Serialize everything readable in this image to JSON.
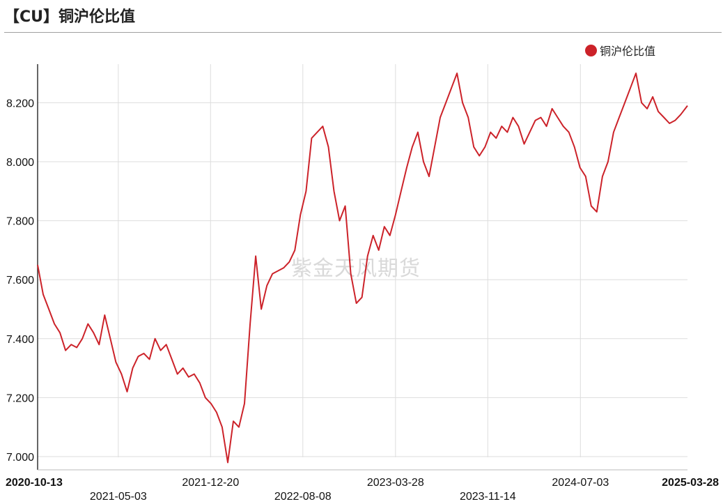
{
  "header": {
    "title": "【CU】铜沪伦比值"
  },
  "watermark": "紫金天风期货",
  "colors": {
    "series": "#cc2229",
    "grid": "#dddddd",
    "axis": "#333333"
  },
  "chart_data": {
    "type": "line",
    "title": "【CU】铜沪伦比值",
    "legend": {
      "position": "top-right",
      "entries": [
        "铜沪伦比值"
      ]
    },
    "grid": true,
    "ylim": [
      7.0,
      8.3
    ],
    "y_ticks": [
      "7.000",
      "7.200",
      "7.400",
      "7.600",
      "7.800",
      "8.000",
      "8.200"
    ],
    "xlim": [
      "2020-10-13",
      "2025-03-28"
    ],
    "x_ticks": [
      "2020-10-13",
      "2021-05-03",
      "2021-12-20",
      "2022-08-08",
      "2023-03-28",
      "2023-11-14",
      "2024-07-03",
      "2025-03-28"
    ],
    "series": [
      {
        "name": "铜沪伦比值",
        "x": [
          "2020-10-13",
          "2020-10-27",
          "2020-11-10",
          "2020-11-24",
          "2020-12-08",
          "2020-12-22",
          "2021-01-05",
          "2021-01-19",
          "2021-02-02",
          "2021-02-16",
          "2021-03-02",
          "2021-03-16",
          "2021-03-30",
          "2021-04-13",
          "2021-04-27",
          "2021-05-11",
          "2021-05-25",
          "2021-06-08",
          "2021-06-22",
          "2021-07-06",
          "2021-07-20",
          "2021-08-03",
          "2021-08-17",
          "2021-08-31",
          "2021-09-14",
          "2021-09-28",
          "2021-10-12",
          "2021-10-26",
          "2021-11-09",
          "2021-11-23",
          "2021-12-07",
          "2021-12-21",
          "2022-01-04",
          "2022-01-18",
          "2022-02-01",
          "2022-02-15",
          "2022-03-01",
          "2022-03-15",
          "2022-03-29",
          "2022-04-12",
          "2022-04-26",
          "2022-05-10",
          "2022-05-24",
          "2022-06-07",
          "2022-06-21",
          "2022-07-05",
          "2022-07-19",
          "2022-08-02",
          "2022-08-16",
          "2022-08-30",
          "2022-09-13",
          "2022-09-27",
          "2022-10-11",
          "2022-10-25",
          "2022-11-08",
          "2022-11-22",
          "2022-12-06",
          "2022-12-20",
          "2023-01-03",
          "2023-01-17",
          "2023-01-31",
          "2023-02-14",
          "2023-02-28",
          "2023-03-14",
          "2023-03-28",
          "2023-04-11",
          "2023-04-25",
          "2023-05-09",
          "2023-05-23",
          "2023-06-06",
          "2023-06-20",
          "2023-07-04",
          "2023-07-18",
          "2023-08-01",
          "2023-08-15",
          "2023-08-29",
          "2023-09-12",
          "2023-09-26",
          "2023-10-10",
          "2023-10-24",
          "2023-11-07",
          "2023-11-21",
          "2023-12-05",
          "2023-12-19",
          "2024-01-02",
          "2024-01-16",
          "2024-01-30",
          "2024-02-13",
          "2024-02-27",
          "2024-03-12",
          "2024-03-26",
          "2024-04-09",
          "2024-04-23",
          "2024-05-07",
          "2024-05-21",
          "2024-06-04",
          "2024-06-18",
          "2024-07-02",
          "2024-07-16",
          "2024-07-30",
          "2024-08-13",
          "2024-08-27",
          "2024-09-10",
          "2024-09-24",
          "2024-10-08",
          "2024-10-22",
          "2024-11-05",
          "2024-11-19",
          "2024-12-03",
          "2024-12-17",
          "2024-12-31",
          "2025-01-14",
          "2025-01-28",
          "2025-02-11",
          "2025-02-25",
          "2025-03-11",
          "2025-03-28"
        ],
        "values": [
          7.65,
          7.55,
          7.5,
          7.45,
          7.42,
          7.36,
          7.38,
          7.37,
          7.4,
          7.45,
          7.42,
          7.38,
          7.48,
          7.4,
          7.32,
          7.28,
          7.22,
          7.3,
          7.34,
          7.35,
          7.33,
          7.4,
          7.36,
          7.38,
          7.33,
          7.28,
          7.3,
          7.27,
          7.28,
          7.25,
          7.2,
          7.18,
          7.15,
          7.1,
          6.98,
          7.12,
          7.1,
          7.18,
          7.45,
          7.68,
          7.5,
          7.58,
          7.62,
          7.63,
          7.64,
          7.66,
          7.7,
          7.82,
          7.9,
          8.08,
          8.1,
          8.12,
          8.05,
          7.9,
          7.8,
          7.85,
          7.62,
          7.52,
          7.54,
          7.68,
          7.75,
          7.7,
          7.78,
          7.75,
          7.82,
          7.9,
          7.98,
          8.05,
          8.1,
          8.0,
          7.95,
          8.05,
          8.15,
          8.2,
          8.25,
          8.3,
          8.2,
          8.15,
          8.05,
          8.02,
          8.05,
          8.1,
          8.08,
          8.12,
          8.1,
          8.15,
          8.12,
          8.06,
          8.1,
          8.14,
          8.15,
          8.12,
          8.18,
          8.15,
          8.12,
          8.1,
          8.05,
          7.98,
          7.95,
          7.85,
          7.83,
          7.95,
          8.0,
          8.1,
          8.15,
          8.2,
          8.25,
          8.3,
          8.2,
          8.18,
          8.22,
          8.17,
          8.15,
          8.13,
          8.14,
          8.16,
          8.19
        ]
      }
    ]
  }
}
